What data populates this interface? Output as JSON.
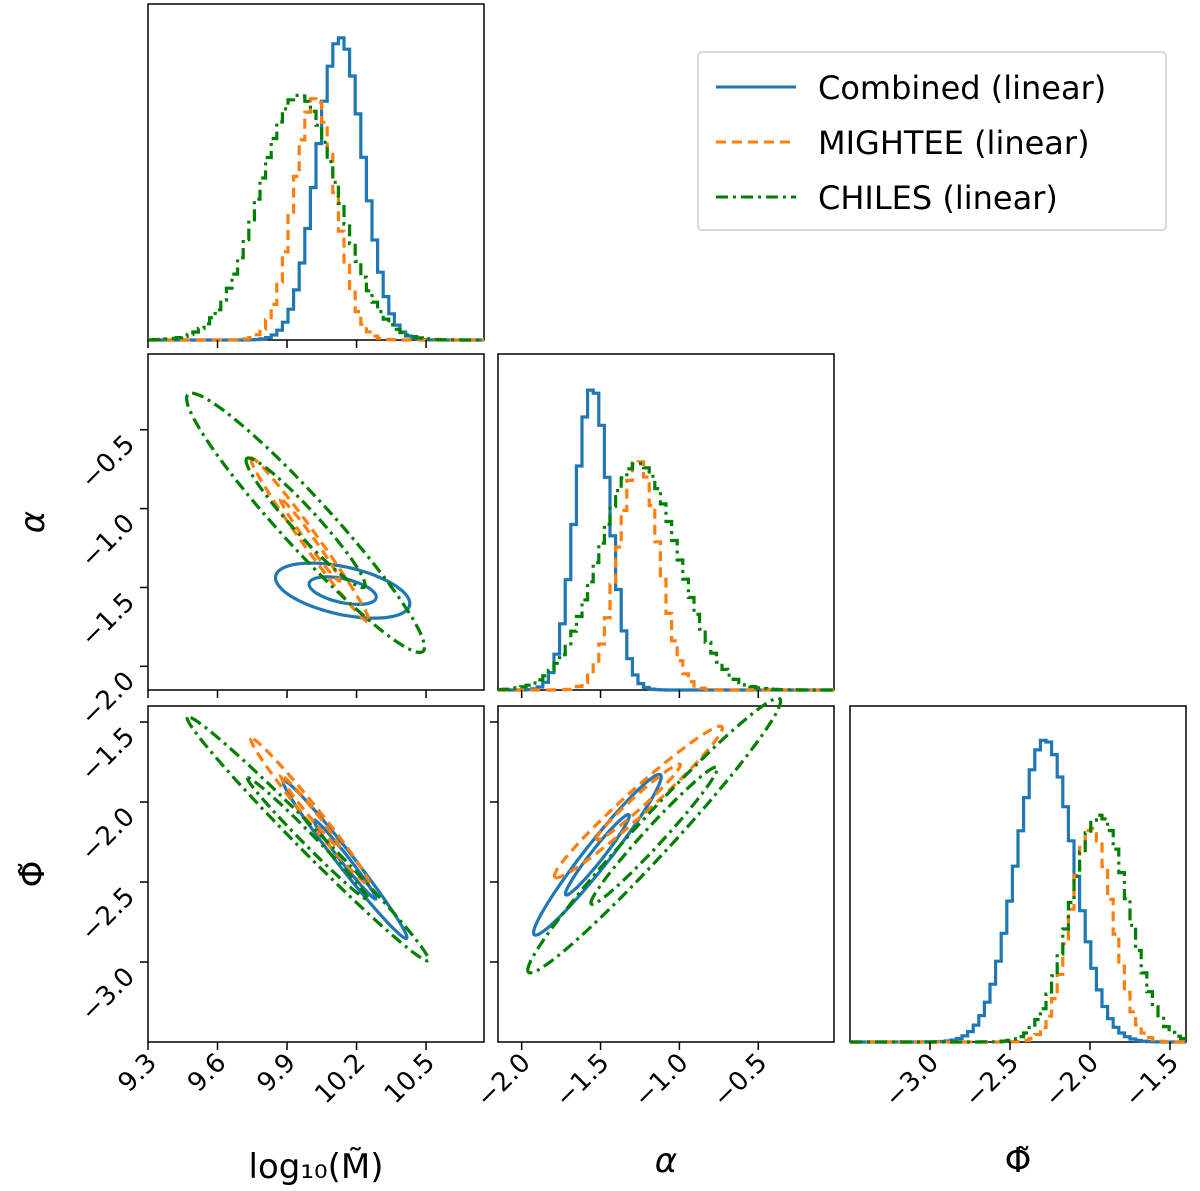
{
  "chart_data": {
    "type": "corner",
    "parameters": [
      {
        "id": "logM",
        "label": "log₁₀(M̃)",
        "range": [
          9.3,
          10.75
        ],
        "ticks": [
          "9.3",
          "9.6",
          "9.9",
          "10.2",
          "10.5"
        ],
        "tick_values": [
          9.3,
          9.6,
          9.9,
          10.2,
          10.5
        ]
      },
      {
        "id": "alpha",
        "label": "α",
        "range": [
          -2.15,
          -0.02
        ],
        "ticks": [
          "−2.0",
          "−1.5",
          "−1.0",
          "−0.5"
        ],
        "tick_values": [
          -2.0,
          -1.5,
          -1.0,
          -0.5
        ]
      },
      {
        "id": "phi",
        "label": "Φ̃",
        "range": [
          -3.5,
          -1.4
        ],
        "ticks": [
          "−3.0",
          "−2.5",
          "−2.0",
          "−1.5"
        ],
        "tick_values": [
          -3.0,
          -2.5,
          -2.0,
          -1.5
        ]
      }
    ],
    "y_tick_labels": {
      "alpha": [
        "−0.5",
        "−1.0",
        "−1.5",
        "−2.0"
      ],
      "phi": [
        "−1.5",
        "−2.0",
        "−2.5",
        "−3.0"
      ]
    },
    "legend": {
      "position": "top-right",
      "entries": [
        {
          "label": "Combined (linear)",
          "color": "#1f77b4",
          "style": "solid"
        },
        {
          "label": "MIGHTEE (linear)",
          "color": "#ff7f0e",
          "style": "dashed"
        },
        {
          "label": "CHILES (linear)",
          "color": "#008000",
          "style": "dashdot"
        }
      ]
    },
    "series": [
      {
        "name": "Combined (linear)",
        "color": "#1f77b4",
        "dash": "",
        "mean": {
          "logM": 10.13,
          "alpha": -1.55,
          "phi": -2.28
        },
        "sd": {
          "logM": 0.1,
          "alpha": 0.11,
          "phi": 0.18
        },
        "peak": {
          "logM": 1.0,
          "alpha": 1.0,
          "phi": 1.0
        },
        "contours": {
          "alpha_vs_logM": {
            "center": [
              10.14,
              -1.52
            ],
            "p1": [
              -0.285,
              0.108
            ],
            "p2": [
              -0.052,
              -0.137
            ],
            "inner_scale": 0.5
          },
          "phi_vs_logM": {
            "center": [
              10.15,
              -2.36
            ],
            "p1": [
              -0.265,
              0.493
            ],
            "p2": [
              -0.034,
              -0.018
            ],
            "inner_scale": 0.5
          },
          "phi_vs_alpha": {
            "center": [
              -1.52,
              -2.33
            ],
            "p1": [
              -0.4,
              -0.5
            ],
            "p2": [
              -0.06,
              0.05
            ],
            "inner_scale": 0.5
          }
        }
      },
      {
        "name": "MIGHTEE (linear)",
        "color": "#ff7f0e",
        "dash": "10,6",
        "mean": {
          "logM": 10.02,
          "alpha": -1.26,
          "phi": -1.99
        },
        "sd": {
          "logM": 0.09,
          "alpha": 0.13,
          "phi": 0.13
        },
        "peak": {
          "logM": 0.8,
          "alpha": 0.76,
          "phi": 0.71
        },
        "contours": {
          "alpha_vs_logM": {
            "center": [
              10.0,
              -1.2
            ],
            "p1": [
              -0.255,
              0.52
            ],
            "p2": [
              -0.025,
              -0.034
            ],
            "inner_scale": 0.5
          },
          "phi_vs_logM": {
            "center": [
              10.0,
              -2.06
            ],
            "p1": [
              -0.255,
              0.458
            ],
            "p2": [
              -0.03,
              -0.02
            ],
            "inner_scale": 0.5
          },
          "phi_vs_alpha": {
            "center": [
              -1.26,
              -2.0
            ],
            "p1": [
              -0.53,
              -0.47
            ],
            "p2": [
              -0.05,
              0.06
            ],
            "inner_scale": 0.5
          }
        }
      },
      {
        "name": "CHILES (linear)",
        "color": "#008000",
        "dash": "12,5,3,5",
        "mean": {
          "logM": 9.95,
          "alpha": -1.26,
          "phi": -1.94
        },
        "sd": {
          "logM": 0.17,
          "alpha": 0.25,
          "phi": 0.18
        },
        "peak": {
          "logM": 0.81,
          "alpha": 0.75,
          "phi": 0.75
        },
        "contours": {
          "alpha_vs_logM": {
            "center": [
              9.98,
              -1.09
            ],
            "p1": [
              -0.51,
              0.81
            ],
            "p2": [
              -0.06,
              -0.14
            ],
            "inner_scale": 0.5
          },
          "phi_vs_logM": {
            "center": [
              9.99,
              -2.23
            ],
            "p1": [
              -0.52,
              0.76
            ],
            "p2": [
              -0.03,
              -0.06
            ],
            "inner_scale": 0.5
          },
          "phi_vs_alpha": {
            "center": [
              -1.16,
              -2.21
            ],
            "p1": [
              -0.8,
              -0.85
            ],
            "p2": [
              -0.05,
              0.12
            ],
            "inner_scale": 0.5
          }
        }
      }
    ]
  }
}
